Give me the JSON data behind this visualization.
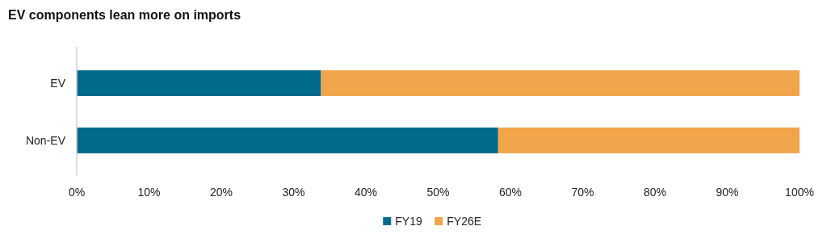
{
  "chart_data": {
    "type": "bar",
    "orientation": "horizontal",
    "stacked": true,
    "title": "EV components lean more on imports",
    "categories": [
      "EV",
      "Non-EV"
    ],
    "series": [
      {
        "name": "FY19",
        "color": "#006a8a",
        "values": [
          33.8,
          58.3
        ]
      },
      {
        "name": "FY26E",
        "color": "#f0a54a",
        "values": [
          66.2,
          41.7
        ]
      }
    ],
    "xlim": [
      0,
      100
    ],
    "xticks": [
      {
        "value": 0,
        "label": "0%"
      },
      {
        "value": 10,
        "label": "10%"
      },
      {
        "value": 20,
        "label": "20%"
      },
      {
        "value": 30,
        "label": "30%"
      },
      {
        "value": 40,
        "label": "40%"
      },
      {
        "value": 50,
        "label": "50%"
      },
      {
        "value": 60,
        "label": "60%"
      },
      {
        "value": 70,
        "label": "70%"
      },
      {
        "value": 80,
        "label": "80%"
      },
      {
        "value": 90,
        "label": "90%"
      },
      {
        "value": 100,
        "label": "100%"
      }
    ],
    "grid": false,
    "legend": "bottom"
  }
}
